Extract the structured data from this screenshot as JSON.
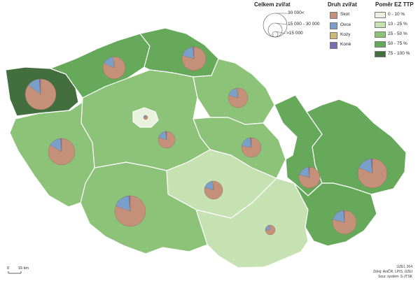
{
  "legend_size": {
    "title": "Celkem zvířat",
    "items": [
      "30 000<",
      "15 000 - 30 000",
      ">15 000"
    ]
  },
  "legend_species": {
    "title": "Druh zvířat",
    "items": [
      {
        "label": "Skot",
        "color": "#c4907a"
      },
      {
        "label": "Ovce",
        "color": "#7a9fc9"
      },
      {
        "label": "Kozy",
        "color": "#cdb874"
      },
      {
        "label": "Koně",
        "color": "#7b6fb1"
      }
    ]
  },
  "legend_ratio": {
    "title": "Poměr EZ TTP",
    "items": [
      {
        "label": "0 - 10 %",
        "color": "#e8f2de"
      },
      {
        "label": "10 - 25 %",
        "color": "#c6e2b3"
      },
      {
        "label": "25 - 50 %",
        "color": "#8cc378"
      },
      {
        "label": "50 - 75 %",
        "color": "#66a95a"
      },
      {
        "label": "75 - 100 %",
        "color": "#426f3d"
      }
    ]
  },
  "scale": {
    "start": "0",
    "end": "15 km"
  },
  "credits": [
    "ÚZEI, 264",
    "Zdroj: AniČR, LPIS, ÚZEI",
    "Sour. systém: S-JTSK"
  ]
}
